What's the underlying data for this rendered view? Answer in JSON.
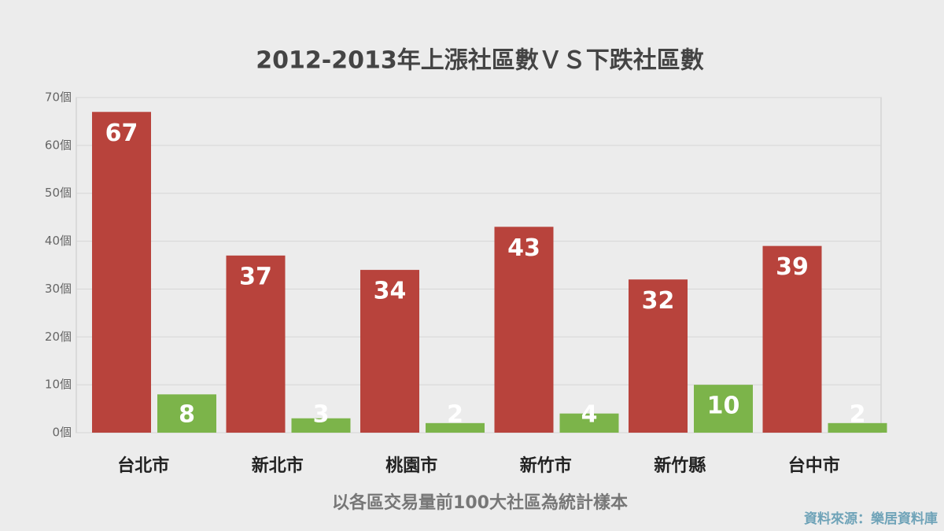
{
  "chart_data": {
    "type": "bar",
    "title": "2012-2013年上漲社區數ＶＳ下跌社區數",
    "note": "以各區交易量前100大社區為統計樣本",
    "source": "資料來源：樂居資料庫",
    "categories": [
      "台北市",
      "新北市",
      "桃園市",
      "新竹市",
      "新竹縣",
      "台中市"
    ],
    "series": [
      {
        "color": "#b8433c",
        "values": [
          67,
          37,
          34,
          43,
          32,
          39
        ]
      },
      {
        "color": "#7cb44a",
        "values": [
          8,
          3,
          2,
          4,
          10,
          2
        ]
      }
    ],
    "ylim": [
      0,
      70
    ],
    "yticks": [
      {
        "value": 0,
        "label": "0個"
      },
      {
        "value": 10,
        "label": "10個"
      },
      {
        "value": 20,
        "label": "20個"
      },
      {
        "value": 30,
        "label": "30個"
      },
      {
        "value": 40,
        "label": "40個"
      },
      {
        "value": 50,
        "label": "50個"
      },
      {
        "value": 60,
        "label": "60個"
      },
      {
        "value": 70,
        "label": "70個"
      }
    ],
    "grid": true
  }
}
